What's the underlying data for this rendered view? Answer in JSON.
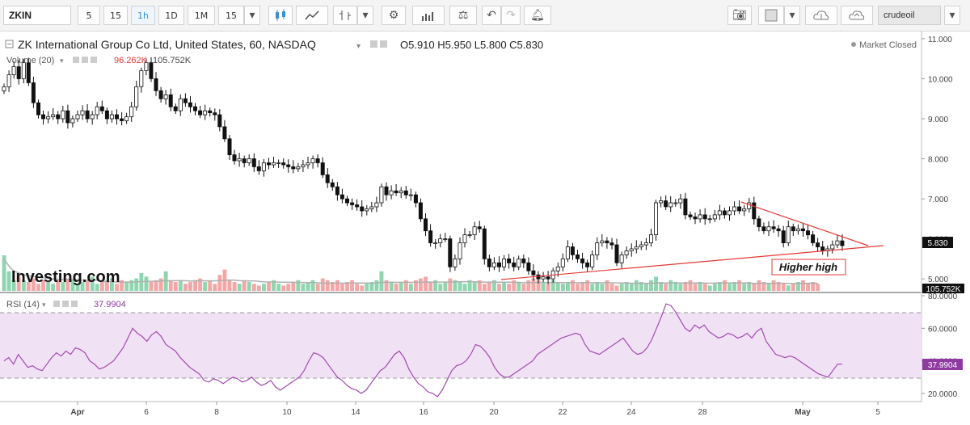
{
  "toolbar": {
    "symbol": "ZKIN",
    "intervals": [
      "5",
      "15",
      "1h",
      "1D",
      "1M",
      "15"
    ],
    "active_interval": "1h",
    "search_value": "crudeoil",
    "icons": [
      "candles-icon",
      "line-chart-icon",
      "bar-style-icon",
      "dropdown-icon",
      "gear-icon",
      "indicators-icon",
      "balance-icon",
      "undo-icon",
      "redo-icon",
      "alert-icon",
      "camera-icon",
      "color-box-icon",
      "cloud-download-icon",
      "cloud-upload-icon",
      "menu-icon"
    ]
  },
  "header": {
    "title": "ZK International Group Co Ltd, United States, 60, NASDAQ",
    "ohlc": "O5.910  H5.950  L5.800  C5.830",
    "market_status": "Market Closed",
    "volume_label": "Volume (20)",
    "volume_val1": "96.262K",
    "volume_val2": "105.752K",
    "rsi_label": "RSI (14)",
    "rsi_value": "37.9904",
    "logo": "Investing.com"
  },
  "annotation": {
    "text": "Higher high"
  },
  "chart_data": {
    "type": "candlestick",
    "title": "ZK International Group Co Ltd, United States, 60, NASDAQ",
    "x_ticks": [
      "Apr",
      "6",
      "8",
      "10",
      "14",
      "16",
      "20",
      "22",
      "24",
      "28",
      "May",
      "5"
    ],
    "price_ticks": [
      "11.000",
      "10.000",
      "9.000",
      "8.000",
      "7.000",
      "6.000",
      "5.000"
    ],
    "last_price": "5.830",
    "volume_last": "105.752K",
    "rsi_ticks": [
      "80.0000",
      "60.0000",
      "40.0000",
      "20.0000"
    ],
    "rsi_last": "37.9904",
    "price_range": [
      4.7,
      11.2
    ],
    "rsi_range": [
      15,
      82
    ],
    "rsi_bands": [
      70,
      30
    ],
    "close_series": [
      9.8,
      10.1,
      10.3,
      10.0,
      10.4,
      9.9,
      9.4,
      9.1,
      9.0,
      9.05,
      9.1,
      9.0,
      9.2,
      8.9,
      9.0,
      9.1,
      9.2,
      9.0,
      9.1,
      9.3,
      9.2,
      9.0,
      9.1,
      9.0,
      8.95,
      9.05,
      9.3,
      9.8,
      10.2,
      10.4,
      10.0,
      9.7,
      9.5,
      9.6,
      9.3,
      9.2,
      9.5,
      9.4,
      9.3,
      9.2,
      9.1,
      9.2,
      9.15,
      9.1,
      8.8,
      8.5,
      8.1,
      7.95,
      8.0,
      7.9,
      8.0,
      7.8,
      7.7,
      7.9,
      7.85,
      7.9,
      7.9,
      7.85,
      7.8,
      7.75,
      7.8,
      7.85,
      7.9,
      8.0,
      7.9,
      7.6,
      7.4,
      7.3,
      7.1,
      7.0,
      6.9,
      6.85,
      6.8,
      6.7,
      6.75,
      6.8,
      6.9,
      7.3,
      7.1,
      7.2,
      7.15,
      7.2,
      7.1,
      7.1,
      6.9,
      6.5,
      6.2,
      5.9,
      5.9,
      6.0,
      6.0,
      5.3,
      5.5,
      5.9,
      6.1,
      6.1,
      6.3,
      6.25,
      5.5,
      5.3,
      5.4,
      5.3,
      5.5,
      5.4,
      5.3,
      5.5,
      5.4,
      5.2,
      5.1,
      5.0,
      5.05,
      5.0,
      5.2,
      5.3,
      5.5,
      5.8,
      5.6,
      5.5,
      5.4,
      5.3,
      5.6,
      5.9,
      5.95,
      5.9,
      5.85,
      5.4,
      5.6,
      5.7,
      5.75,
      5.8,
      5.85,
      5.9,
      6.1,
      6.9,
      6.95,
      6.8,
      6.9,
      6.9,
      7.0,
      6.6,
      6.55,
      6.5,
      6.6,
      6.5,
      6.5,
      6.6,
      6.7,
      6.6,
      6.7,
      6.8,
      6.7,
      6.75,
      6.9,
      6.5,
      6.3,
      6.2,
      6.3,
      6.25,
      6.2,
      5.9,
      6.3,
      6.2,
      6.25,
      6.2,
      6.1,
      5.9,
      5.8,
      5.7,
      5.75,
      5.85,
      5.95,
      5.83
    ],
    "volume_series": [
      1.0,
      0.55,
      0.3,
      0.4,
      0.3,
      0.25,
      0.35,
      0.2,
      0.3,
      0.25,
      0.2,
      0.3,
      0.25,
      0.35,
      0.3,
      0.2,
      0.25,
      0.3,
      0.4,
      0.2,
      0.25,
      0.3,
      0.35,
      0.2,
      0.3,
      0.25,
      0.3,
      0.35,
      0.5,
      0.4,
      0.25,
      0.3,
      0.35,
      0.55,
      0.3,
      0.25,
      0.3,
      0.2,
      0.25,
      0.3,
      0.35,
      0.25,
      0.3,
      0.2,
      0.45,
      0.6,
      0.3,
      0.25,
      0.2,
      0.3,
      0.25,
      0.2,
      0.15,
      0.2,
      0.25,
      0.3,
      0.2,
      0.15,
      0.2,
      0.25,
      0.3,
      0.2,
      0.25,
      0.3,
      0.2,
      0.35,
      0.3,
      0.25,
      0.3,
      0.2,
      0.25,
      0.3,
      0.2,
      0.15,
      0.2,
      0.25,
      0.3,
      0.55,
      0.3,
      0.25,
      0.2,
      0.25,
      0.3,
      0.2,
      0.3,
      0.35,
      0.4,
      0.25,
      0.3,
      0.2,
      0.25,
      0.35,
      0.3,
      0.25,
      0.2,
      0.3,
      0.25,
      0.3,
      0.2,
      0.25,
      0.3,
      0.2,
      0.25,
      0.2,
      0.3,
      0.25,
      0.2,
      0.3,
      0.35,
      0.3,
      0.25,
      0.2,
      0.3,
      0.25,
      0.2,
      0.25,
      0.3,
      0.2,
      0.25,
      0.3,
      0.2,
      0.25,
      0.2,
      0.3,
      0.2,
      0.15,
      0.2,
      0.25,
      0.2,
      0.3,
      0.25,
      0.2,
      0.3,
      0.4,
      0.25,
      0.2,
      0.3,
      0.25,
      0.2,
      0.25,
      0.3,
      0.2,
      0.25,
      0.2,
      0.15,
      0.2,
      0.25,
      0.3,
      0.2,
      0.25,
      0.3,
      0.2,
      0.25,
      0.2,
      0.3,
      0.25,
      0.2,
      0.3,
      0.25,
      0.2,
      0.15,
      0.2,
      0.25,
      0.3,
      0.2,
      0.25,
      0.2
    ],
    "rsi_series": [
      40,
      42,
      38,
      44,
      40,
      36,
      37,
      35,
      34,
      38,
      42,
      45,
      43,
      46,
      44,
      48,
      47,
      45,
      40,
      38,
      35,
      36,
      38,
      40,
      44,
      48,
      54,
      60,
      57,
      55,
      52,
      56,
      58,
      55,
      50,
      48,
      46,
      42,
      39,
      36,
      34,
      32,
      28,
      27,
      29,
      28,
      26,
      28,
      30,
      29,
      27,
      28,
      30,
      27,
      25,
      26,
      28,
      24,
      22,
      24,
      26,
      28,
      30,
      34,
      40,
      45,
      44,
      42,
      38,
      34,
      30,
      28,
      25,
      23,
      22,
      20,
      22,
      26,
      30,
      34,
      36,
      40,
      44,
      46,
      42,
      35,
      30,
      26,
      24,
      21,
      20,
      18,
      22,
      28,
      34,
      37,
      38,
      40,
      44,
      50,
      49,
      46,
      42,
      36,
      32,
      30,
      30,
      32,
      34,
      36,
      38,
      40,
      44,
      46,
      48,
      50,
      52,
      54,
      55,
      56,
      57,
      56,
      50,
      46,
      45,
      44,
      46,
      48,
      50,
      52,
      54,
      50,
      46,
      44,
      45,
      48,
      53,
      60,
      67,
      75,
      74,
      70,
      65,
      60,
      58,
      62,
      60,
      62,
      58,
      56,
      54,
      55,
      57,
      56,
      54,
      55,
      57,
      54,
      58,
      60,
      52,
      48,
      44,
      43,
      42,
      43,
      42,
      40,
      38,
      36,
      34,
      32,
      31,
      30,
      34,
      38,
      38
    ]
  }
}
